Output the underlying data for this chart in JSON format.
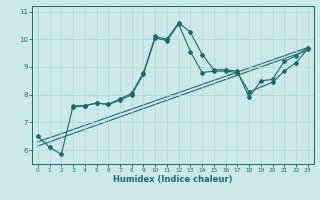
{
  "xlabel": "Humidex (Indice chaleur)",
  "xlim": [
    -0.5,
    23.5
  ],
  "ylim": [
    5.5,
    11.2
  ],
  "yticks": [
    6,
    7,
    8,
    9,
    10,
    11
  ],
  "xticks": [
    0,
    1,
    2,
    3,
    4,
    5,
    6,
    7,
    8,
    9,
    10,
    11,
    12,
    13,
    14,
    15,
    16,
    17,
    18,
    19,
    20,
    21,
    22,
    23
  ],
  "bg_color": "#cce8e8",
  "line_color": "#1a6b6b",
  "grid_color": "#afd4d4",
  "series_wavy1": {
    "x": [
      0,
      1,
      2,
      3,
      4,
      5,
      6,
      7,
      8,
      9,
      10,
      11,
      12,
      13,
      14,
      15,
      16,
      17,
      18,
      19,
      20,
      21,
      22,
      23
    ],
    "y": [
      6.5,
      6.1,
      5.85,
      7.6,
      7.6,
      7.7,
      7.65,
      7.85,
      8.05,
      8.8,
      10.1,
      10.0,
      10.6,
      10.25,
      9.45,
      8.9,
      8.9,
      8.85,
      7.9,
      8.5,
      8.55,
      9.2,
      9.4,
      9.7
    ]
  },
  "series_wavy2": {
    "x": [
      3,
      4,
      5,
      6,
      7,
      8,
      9,
      10,
      11,
      12,
      13,
      14,
      15,
      16,
      17,
      18,
      20,
      21,
      22,
      23
    ],
    "y": [
      7.55,
      7.6,
      7.7,
      7.65,
      7.8,
      8.0,
      8.75,
      10.05,
      9.95,
      10.55,
      9.55,
      8.8,
      8.85,
      8.85,
      8.8,
      8.1,
      8.45,
      8.85,
      9.15,
      9.65
    ]
  },
  "regression1": {
    "x": [
      0,
      23
    ],
    "y": [
      6.3,
      9.7
    ]
  },
  "regression2": {
    "x": [
      0,
      23
    ],
    "y": [
      6.15,
      9.6
    ]
  }
}
